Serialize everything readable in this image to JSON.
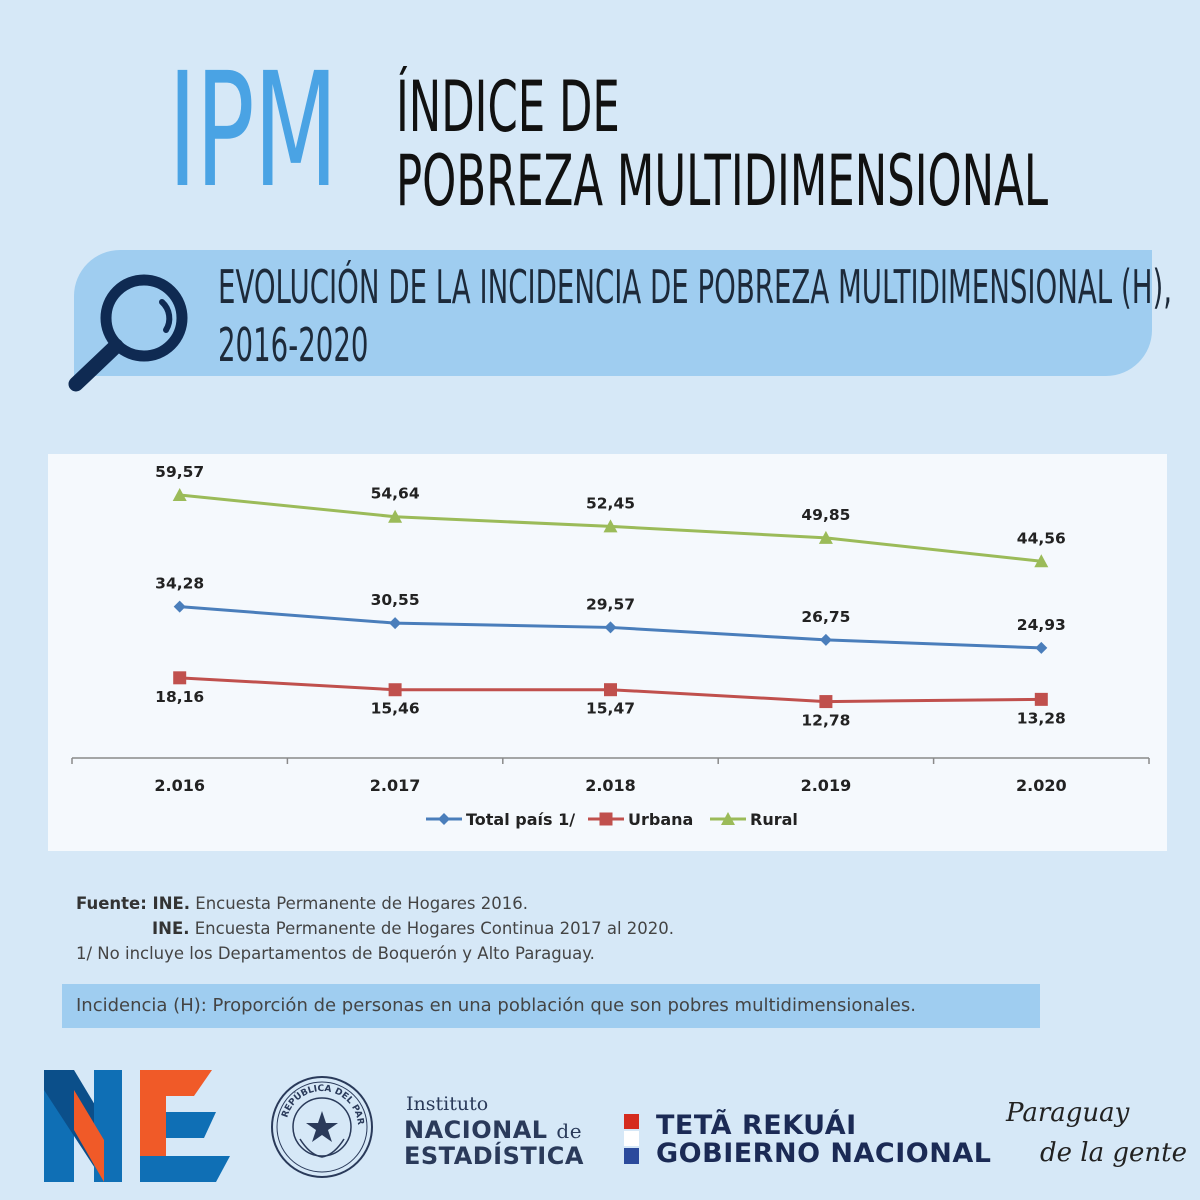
{
  "header": {
    "acronym": "IPM",
    "title_line1": "ÍNDICE DE",
    "title_line2": "POBREZA MULTIDIMENSIONAL"
  },
  "banner": {
    "icon": "magnifier-icon",
    "subtitle_line1": "EVOLUCIÓN DE LA INCIDENCIA DE POBREZA MULTIDIMENSIONAL (H),",
    "subtitle_line2": "2016-2020"
  },
  "chart_data": {
    "type": "line",
    "categories": [
      "2.016",
      "2.017",
      "2.018",
      "2.019",
      "2.020"
    ],
    "ylim": [
      0,
      65
    ],
    "grid": false,
    "legend_position": "bottom",
    "series": [
      {
        "name": "Total país 1/",
        "color": "#4a7ebb",
        "marker": "diamond",
        "values": [
          34.28,
          30.55,
          29.57,
          26.75,
          24.93
        ],
        "labels": [
          "34,28",
          "30,55",
          "29,57",
          "26,75",
          "24,93"
        ],
        "label_position": "above"
      },
      {
        "name": "Urbana",
        "color": "#c0504d",
        "marker": "square",
        "values": [
          18.16,
          15.46,
          15.47,
          12.78,
          13.28
        ],
        "labels": [
          "18,16",
          "15,46",
          "15,47",
          "12,78",
          "13,28"
        ],
        "label_position": "below"
      },
      {
        "name": "Rural",
        "color": "#9bbb59",
        "marker": "triangle",
        "values": [
          59.57,
          54.64,
          52.45,
          49.85,
          44.56
        ],
        "labels": [
          "59,57",
          "54,64",
          "52,45",
          "49,85",
          "44,56"
        ],
        "label_position": "above"
      }
    ]
  },
  "source": {
    "line1_bold": "Fuente: INE.",
    "line1_text": " Encuesta Permanente de Hogares 2016.",
    "line2_bold": "INE.",
    "line2_text": " Encuesta Permanente de Hogares Continua  2017 al  2020.",
    "note": "1/ No incluye los Departamentos de Boquerón y Alto Paraguay."
  },
  "definition": "Incidencia (H): Proporción de personas en una población que son pobres multidimensionales.",
  "footer": {
    "ine_logo": "ine-logo",
    "seal_text": "REPÚBLICA DEL PARAGUAY",
    "inst_small": "Instituto",
    "inst_big1": "NACIONAL",
    "inst_de": "de",
    "inst_big2": "ESTADÍSTICA",
    "gov_line1": "TETÃ REKUÁI",
    "gov_line2": "GOBIERNO NACIONAL",
    "slogan_line1": "Paraguay",
    "slogan_line2": "de la gente",
    "colors": {
      "ne_blue": "#0f6fb5",
      "ne_orange": "#f05a28",
      "flag_red": "#d52b1e",
      "flag_blue": "#2b4a9c"
    }
  }
}
